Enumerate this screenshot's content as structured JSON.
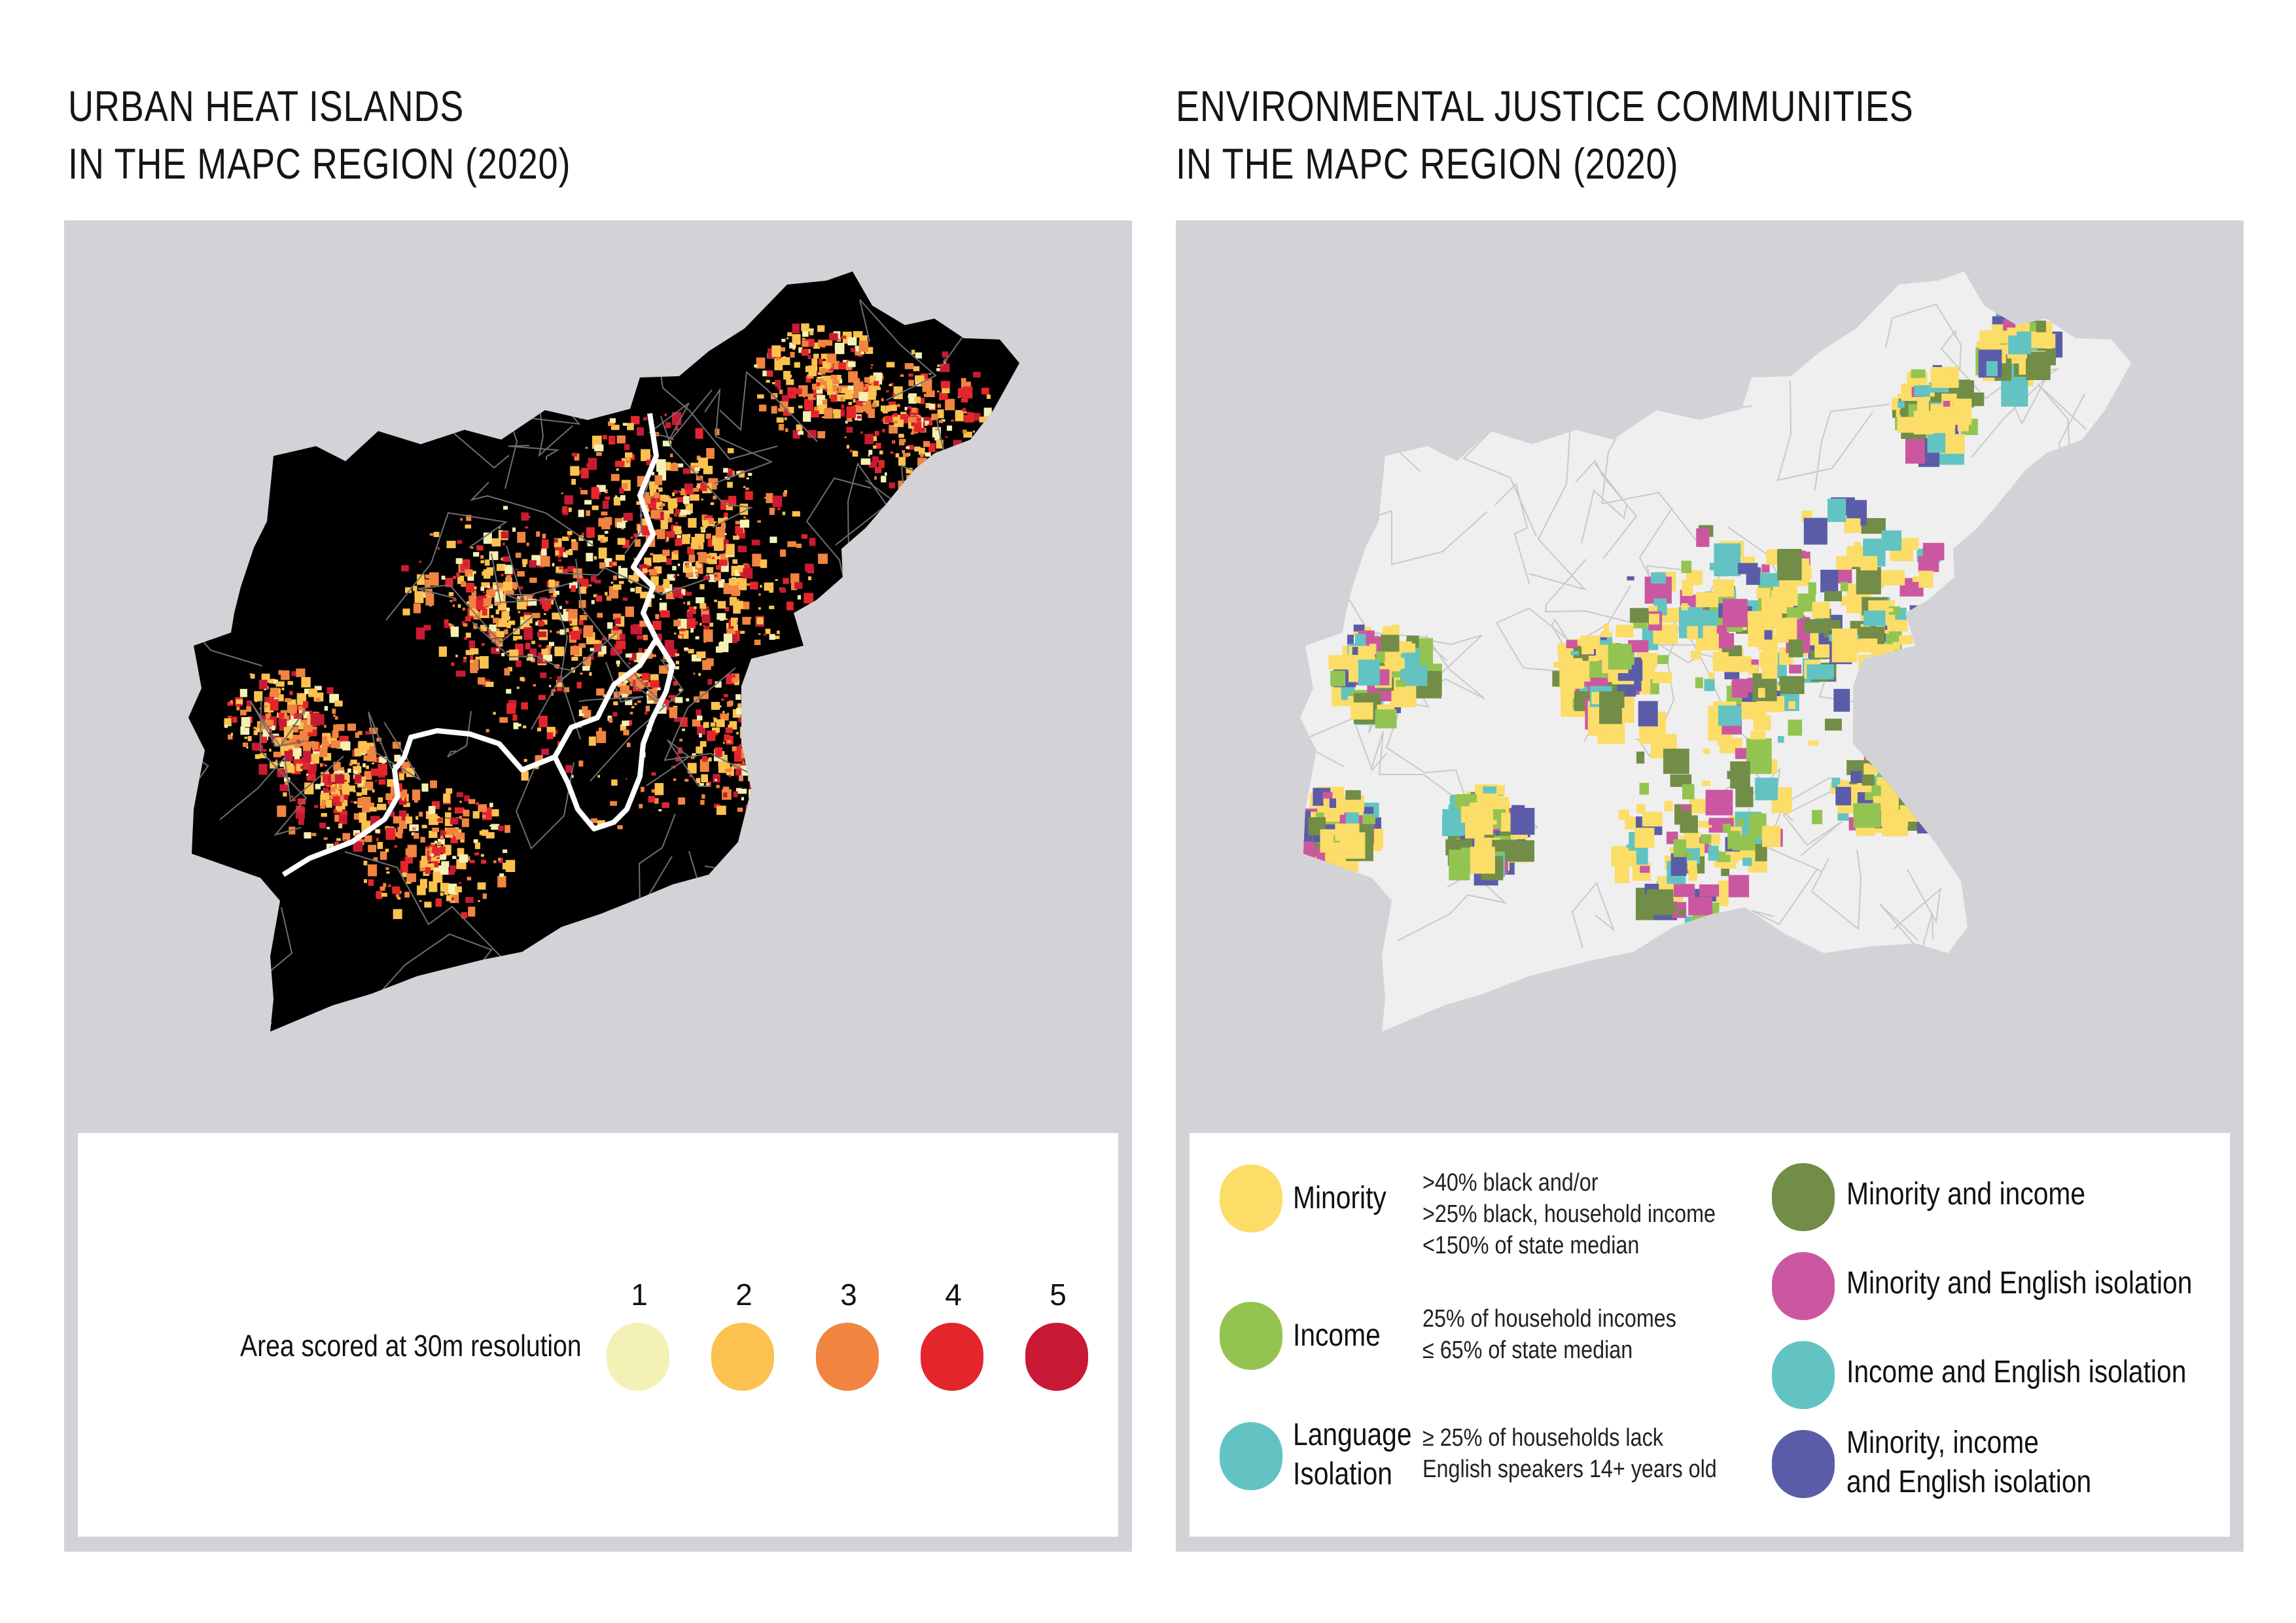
{
  "left": {
    "title_line1": "URBAN HEAT ISLANDS",
    "title_line2": "IN THE MAPC REGION (2020)",
    "legend_label": "Area scored at 30m resolution",
    "levels": [
      {
        "label": "1",
        "color": "#f3f1b5"
      },
      {
        "label": "2",
        "color": "#fcc24f"
      },
      {
        "label": "3",
        "color": "#f08440"
      },
      {
        "label": "4",
        "color": "#e4262c"
      },
      {
        "label": "5",
        "color": "#c81a34"
      }
    ]
  },
  "right": {
    "title_line1": "ENVIRONMENTAL JUSTICE COMMUNITIES",
    "title_line2": "IN THE MAPC REGION (2020)",
    "categories": [
      {
        "name": "Minority",
        "color": "#fbdd67",
        "desc_line1": ">40% black and/or",
        "desc_line2": ">25% black, household income",
        "desc_line3": "<150% of state median"
      },
      {
        "name": "Income",
        "color": "#93c452",
        "desc_line1": "25% of household incomes",
        "desc_line2": "≤ 65% of state median"
      },
      {
        "name_line1": "Language",
        "name_line2": "Isolation",
        "color": "#62c3c2",
        "desc_line1": "≥ 25% of households lack",
        "desc_line2": "English speakers 14+ years old"
      },
      {
        "name": "Minority and income",
        "color": "#718d47"
      },
      {
        "name": "Minority and English isolation",
        "color": "#cc57a1"
      },
      {
        "name": "Income and English isolation",
        "color": "#62c3c2"
      },
      {
        "name_line1": "Minority, income",
        "name_line2": "and English isolation",
        "color": "#5b5ca8"
      }
    ]
  },
  "colors": {
    "panel_bg": "#d3d2d7",
    "heat_base": "#000000",
    "ej_base": "#efefef"
  }
}
